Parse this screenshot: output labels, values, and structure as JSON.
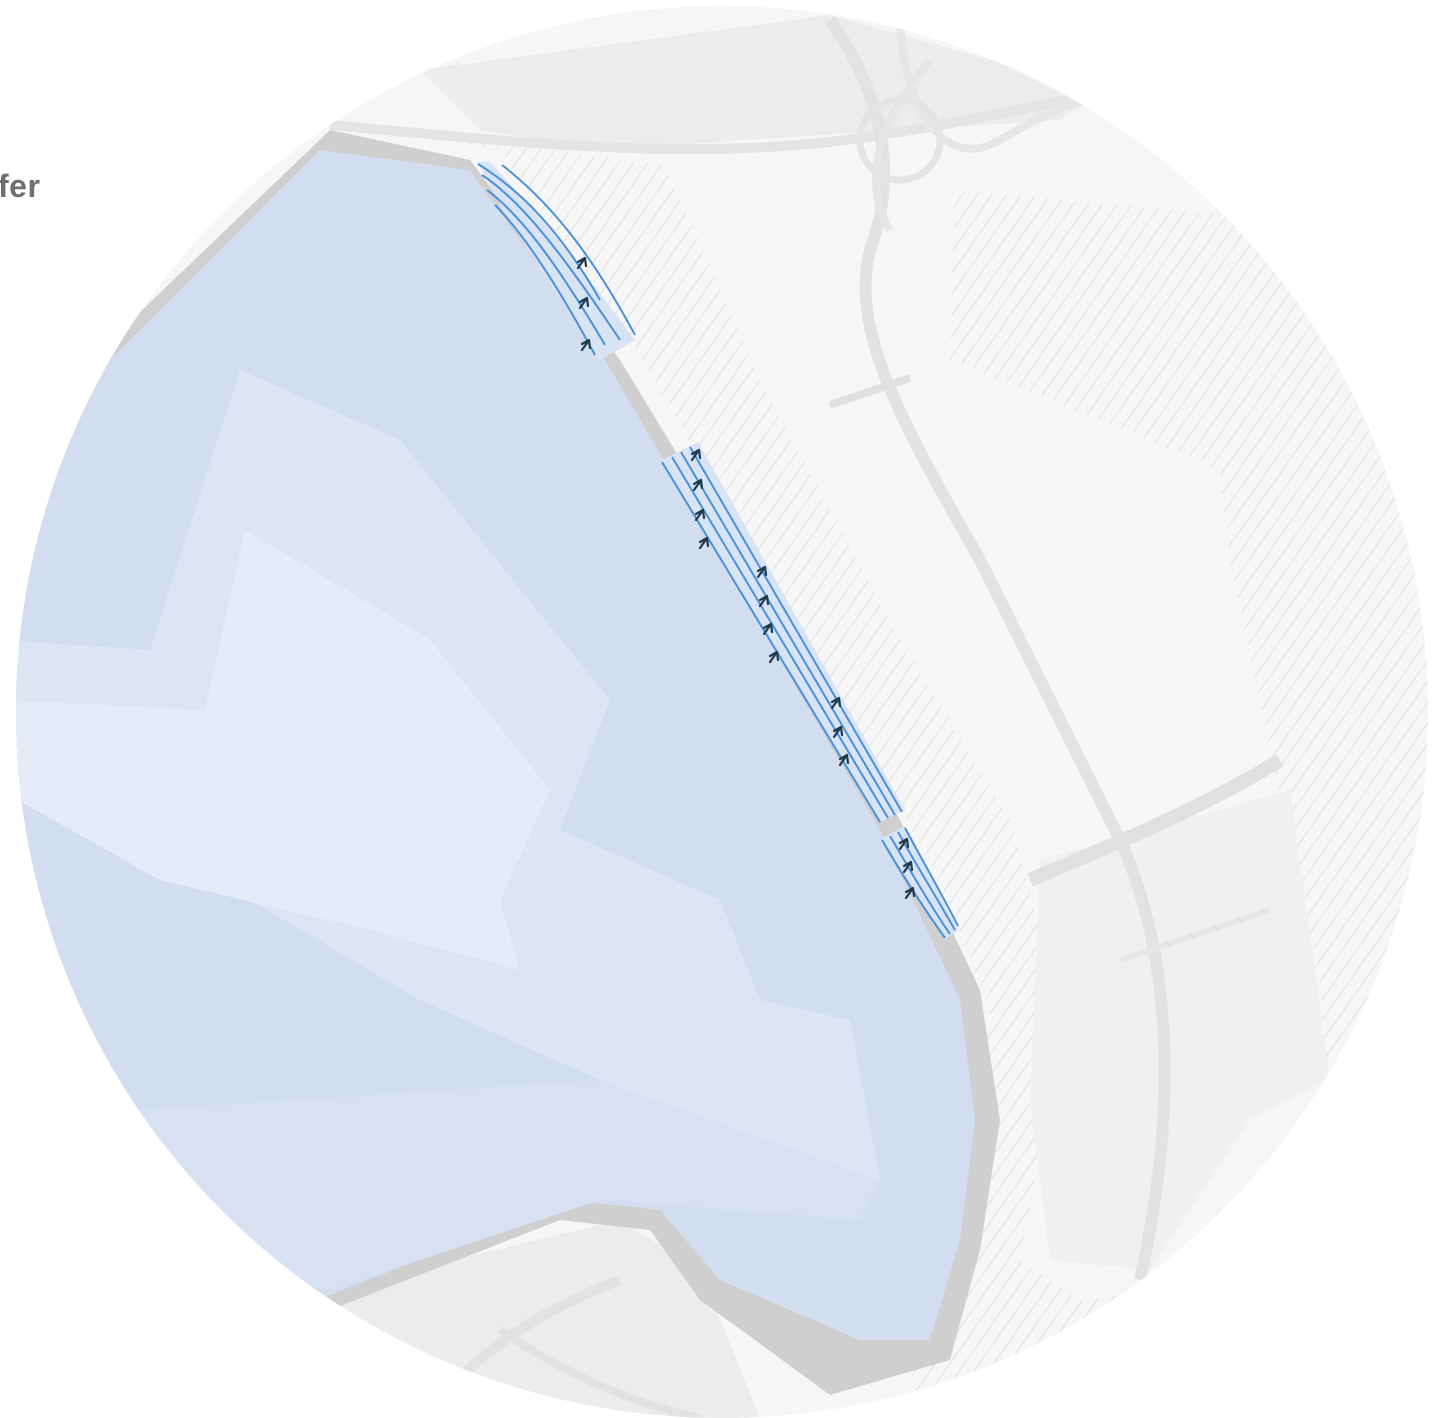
{
  "map": {
    "partial_label": "fer",
    "colors": {
      "background": "#ffffff",
      "water": "#d2ddf0",
      "water_light": "#e6ecf7",
      "embankment": "#cfcfcf",
      "land": "#f5f5f5",
      "hatch": "#bdbdbd",
      "road": "#e2e2e2",
      "lane": "#4a90d9",
      "arrow": "#1f3a4d",
      "label": "#6f6f6f"
    },
    "icons": [
      "lane-arrow-icon"
    ]
  }
}
